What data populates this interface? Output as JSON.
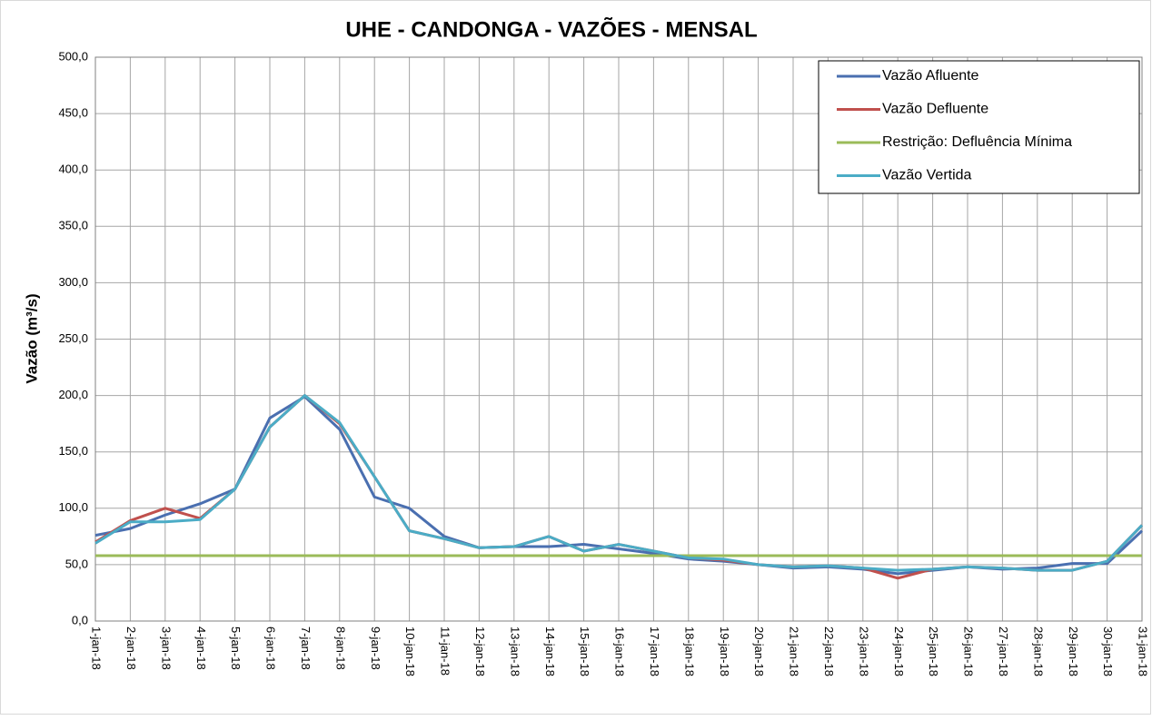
{
  "chart_data": {
    "type": "line",
    "title": "UHE - CANDONGA - VAZÕES -  MENSAL",
    "y_label": "Vazão (m³/s)",
    "categories": [
      "1-jan-18",
      "2-jan-18",
      "3-jan-18",
      "4-jan-18",
      "5-jan-18",
      "6-jan-18",
      "7-jan-18",
      "8-jan-18",
      "9-jan-18",
      "10-jan-18",
      "11-jan-18",
      "12-jan-18",
      "13-jan-18",
      "14-jan-18",
      "15-jan-18",
      "16-jan-18",
      "17-jan-18",
      "18-jan-18",
      "19-jan-18",
      "20-jan-18",
      "21-jan-18",
      "22-jan-18",
      "23-jan-18",
      "24-jan-18",
      "25-jan-18",
      "26-jan-18",
      "27-jan-18",
      "28-jan-18",
      "29-jan-18",
      "30-jan-18",
      "31-jan-18"
    ],
    "series": [
      {
        "name": "Vazão Afluente",
        "color": "#4a6fb0",
        "values": [
          76,
          82,
          94,
          104,
          117,
          180,
          199,
          170,
          110,
          100,
          75,
          65,
          66,
          66,
          68,
          64,
          60,
          55,
          53,
          50,
          47,
          48,
          46,
          42,
          45,
          48,
          46,
          47,
          51,
          51,
          80
        ]
      },
      {
        "name": "Vazão Defluente",
        "color": "#c0504d",
        "values": [
          70,
          89,
          100,
          91,
          117,
          172,
          200,
          175,
          128,
          80,
          73,
          65,
          66,
          75,
          62,
          68,
          62,
          56,
          54,
          50,
          48,
          49,
          47,
          38,
          46,
          48,
          47,
          45,
          45,
          53,
          85
        ]
      },
      {
        "name": "Restrição: Defluência Mínima",
        "color": "#9bbb59",
        "values": [
          58,
          58,
          58,
          58,
          58,
          58,
          58,
          58,
          58,
          58,
          58,
          58,
          58,
          58,
          58,
          58,
          58,
          58,
          58,
          58,
          58,
          58,
          58,
          58,
          58,
          58,
          58,
          58,
          58,
          58,
          58
        ]
      },
      {
        "name": "Vazão Vertida",
        "color": "#4bacc6",
        "values": [
          69,
          88,
          88,
          90,
          117,
          172,
          200,
          176,
          128,
          80,
          73,
          65,
          66,
          75,
          62,
          68,
          62,
          56,
          55,
          50,
          48,
          49,
          47,
          45,
          46,
          48,
          47,
          45,
          45,
          53,
          85
        ]
      }
    ],
    "ylim": [
      0,
      500
    ],
    "yticks": [
      {
        "value": 0,
        "label": "0,0"
      },
      {
        "value": 50,
        "label": "50,0"
      },
      {
        "value": 100,
        "label": "100,0"
      },
      {
        "value": 150,
        "label": "150,0"
      },
      {
        "value": 200,
        "label": "200,0"
      },
      {
        "value": 250,
        "label": "250,0"
      },
      {
        "value": 300,
        "label": "300,0"
      },
      {
        "value": 350,
        "label": "350,0"
      },
      {
        "value": 400,
        "label": "400,0"
      },
      {
        "value": 450,
        "label": "450,0"
      },
      {
        "value": 500,
        "label": "500,0"
      }
    ],
    "grid": true,
    "legend": "upper right"
  }
}
